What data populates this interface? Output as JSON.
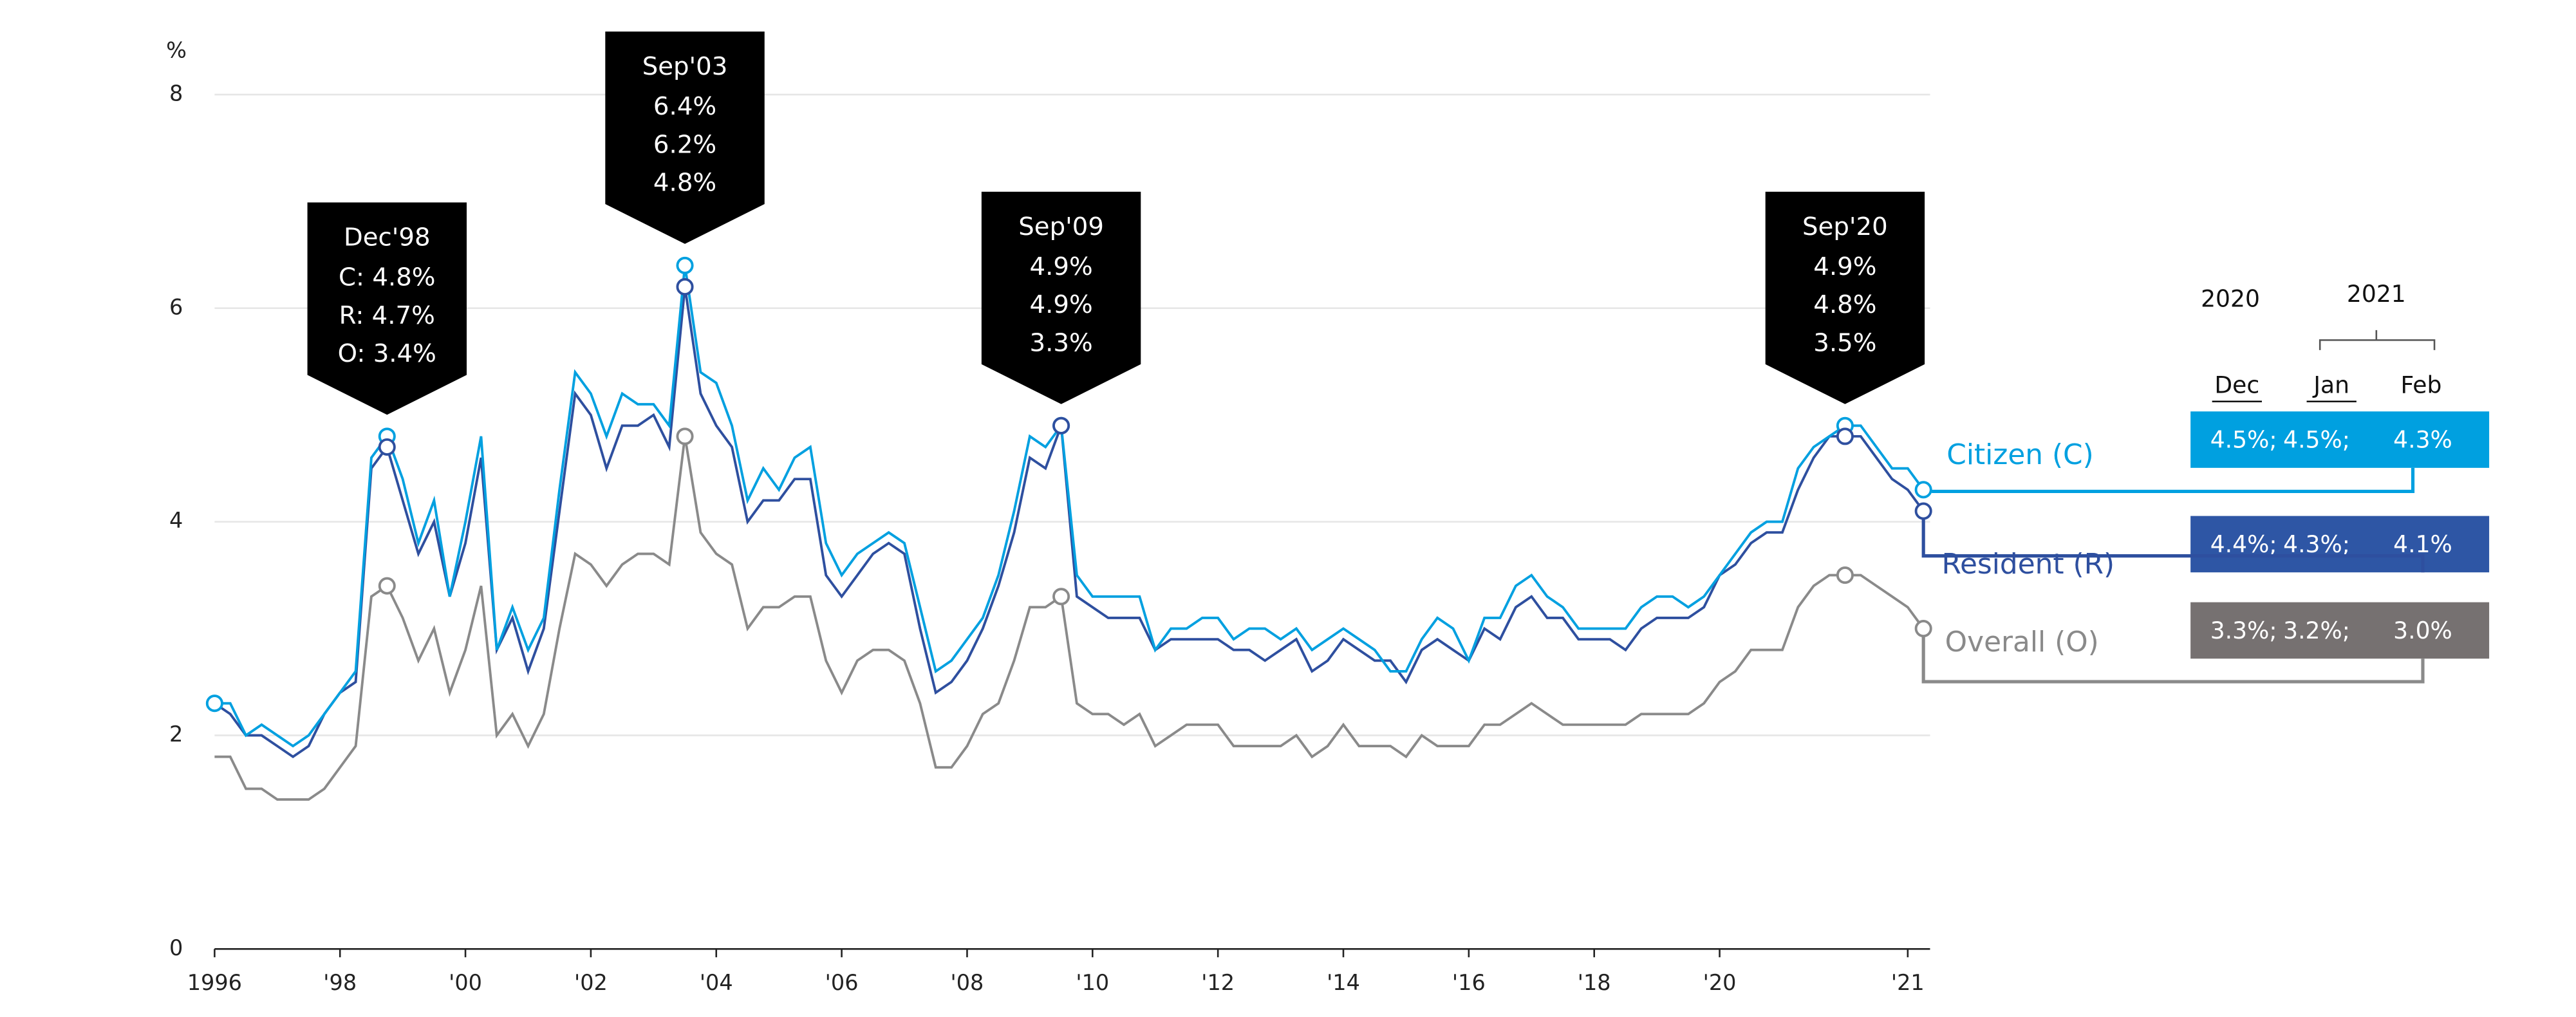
{
  "chart_data": {
    "type": "line",
    "y_unit": "%",
    "categories": [
      "1996",
      null,
      null,
      null,
      null,
      null,
      null,
      null,
      "'98",
      null,
      null,
      null,
      null,
      null,
      null,
      null,
      "'00",
      null,
      null,
      null,
      null,
      null,
      null,
      null,
      "'02",
      null,
      null,
      null,
      null,
      null,
      null,
      null,
      "'04",
      null,
      null,
      null,
      null,
      null,
      null,
      null,
      "'06",
      null,
      null,
      null,
      null,
      null,
      null,
      null,
      "'08",
      null,
      null,
      null,
      null,
      null,
      null,
      null,
      "'10",
      null,
      null,
      null,
      null,
      null,
      null,
      null,
      "'12",
      null,
      null,
      null,
      null,
      null,
      null,
      null,
      "'14",
      null,
      null,
      null,
      null,
      null,
      null,
      null,
      "'16",
      null,
      null,
      null,
      null,
      null,
      null,
      null,
      "'18",
      null,
      null,
      null,
      null,
      null,
      null,
      null,
      "'20",
      null,
      null,
      null,
      null,
      null,
      null,
      null,
      null,
      null,
      null,
      null,
      "'21",
      null
    ],
    "ylim": [
      0,
      8
    ],
    "yticks": [
      0,
      2,
      4,
      6,
      8
    ],
    "grid": true,
    "series": [
      {
        "name": "Citizen (C)",
        "color": "#00a0e0",
        "values": [
          2.3,
          2.3,
          2.0,
          2.1,
          2.0,
          1.9,
          2.0,
          2.2,
          2.4,
          2.6,
          4.6,
          4.8,
          4.4,
          3.8,
          4.2,
          3.3,
          4.0,
          4.8,
          2.8,
          3.2,
          2.8,
          3.1,
          4.3,
          5.4,
          5.2,
          4.8,
          5.2,
          5.1,
          5.1,
          4.9,
          6.4,
          5.4,
          5.3,
          4.9,
          4.2,
          4.5,
          4.3,
          4.6,
          4.7,
          3.8,
          3.5,
          3.7,
          3.8,
          3.9,
          3.8,
          3.2,
          2.6,
          2.7,
          2.9,
          3.1,
          3.5,
          4.1,
          4.8,
          4.7,
          4.9,
          3.5,
          3.3,
          3.3,
          3.3,
          3.3,
          2.8,
          3.0,
          3.0,
          3.1,
          3.1,
          2.9,
          3.0,
          3.0,
          2.9,
          3.0,
          2.8,
          2.9,
          3.0,
          2.9,
          2.8,
          2.6,
          2.6,
          2.9,
          3.1,
          3.0,
          2.7,
          3.1,
          3.1,
          3.4,
          3.5,
          3.3,
          3.2,
          3.0,
          3.0,
          3.0,
          3.0,
          3.2,
          3.3,
          3.3,
          3.2,
          3.3,
          3.5,
          3.7,
          3.9,
          4.0,
          4.0,
          4.5,
          4.7,
          4.8,
          4.9,
          4.9,
          4.7,
          4.5,
          4.5,
          4.3
        ]
      },
      {
        "name": "Resident (R)",
        "color": "#2e4f9f",
        "values": [
          2.3,
          2.2,
          2.0,
          2.0,
          1.9,
          1.8,
          1.9,
          2.2,
          2.4,
          2.5,
          4.5,
          4.7,
          4.2,
          3.7,
          4.0,
          3.3,
          3.8,
          4.6,
          2.8,
          3.1,
          2.6,
          3.0,
          4.1,
          5.2,
          5.0,
          4.5,
          4.9,
          4.9,
          5.0,
          4.7,
          6.2,
          5.2,
          4.9,
          4.7,
          4.0,
          4.2,
          4.2,
          4.4,
          4.4,
          3.5,
          3.3,
          3.5,
          3.7,
          3.8,
          3.7,
          3.0,
          2.4,
          2.5,
          2.7,
          3.0,
          3.4,
          3.9,
          4.6,
          4.5,
          4.9,
          3.3,
          3.2,
          3.1,
          3.1,
          3.1,
          2.8,
          2.9,
          2.9,
          2.9,
          2.9,
          2.8,
          2.8,
          2.7,
          2.8,
          2.9,
          2.6,
          2.7,
          2.9,
          2.8,
          2.7,
          2.7,
          2.5,
          2.8,
          2.9,
          2.8,
          2.7,
          3.0,
          2.9,
          3.2,
          3.3,
          3.1,
          3.1,
          2.9,
          2.9,
          2.9,
          2.8,
          3.0,
          3.1,
          3.1,
          3.1,
          3.2,
          3.5,
          3.6,
          3.8,
          3.9,
          3.9,
          4.3,
          4.6,
          4.8,
          4.8,
          4.8,
          4.6,
          4.4,
          4.3,
          4.1
        ]
      },
      {
        "name": "Overall (O)",
        "color": "#8a8a8a",
        "values": [
          1.8,
          1.8,
          1.5,
          1.5,
          1.4,
          1.4,
          1.4,
          1.5,
          1.7,
          1.9,
          3.3,
          3.4,
          3.1,
          2.7,
          3.0,
          2.4,
          2.8,
          3.4,
          2.0,
          2.2,
          1.9,
          2.2,
          3.0,
          3.7,
          3.6,
          3.4,
          3.6,
          3.7,
          3.7,
          3.6,
          4.8,
          3.9,
          3.7,
          3.6,
          3.0,
          3.2,
          3.2,
          3.3,
          3.3,
          2.7,
          2.4,
          2.7,
          2.8,
          2.8,
          2.7,
          2.3,
          1.7,
          1.7,
          1.9,
          2.2,
          2.3,
          2.7,
          3.2,
          3.2,
          3.3,
          2.3,
          2.2,
          2.2,
          2.1,
          2.2,
          1.9,
          2.0,
          2.1,
          2.1,
          2.1,
          1.9,
          1.9,
          1.9,
          1.9,
          2.0,
          1.8,
          1.9,
          2.1,
          1.9,
          1.9,
          1.9,
          1.8,
          2.0,
          1.9,
          1.9,
          1.9,
          2.1,
          2.1,
          2.2,
          2.3,
          2.2,
          2.1,
          2.1,
          2.1,
          2.1,
          2.1,
          2.2,
          2.2,
          2.2,
          2.2,
          2.3,
          2.5,
          2.6,
          2.8,
          2.8,
          2.8,
          3.2,
          3.4,
          3.5,
          3.5,
          3.5,
          3.4,
          3.3,
          3.2,
          3.0
        ]
      }
    ],
    "annotations": [
      {
        "title": "Dec'98",
        "lines": [
          "C: 4.8%",
          "R: 4.7%",
          "O: 3.4%"
        ],
        "index": 11
      },
      {
        "title": "Sep'03",
        "lines": [
          "6.4%",
          "6.2%",
          "4.8%"
        ],
        "index": 30
      },
      {
        "title": "Sep'09",
        "lines": [
          "4.9%",
          "4.9%",
          "3.3%"
        ],
        "index": 54
      },
      {
        "title": "Sep'20",
        "lines": [
          "4.9%",
          "4.8%",
          "3.5%"
        ],
        "index": 104
      }
    ],
    "table": {
      "years": [
        "2020",
        "2021"
      ],
      "months": [
        "Dec",
        "Jan",
        "Feb"
      ],
      "box_colors": [
        "#00a0e0",
        "#2e56a5",
        "#767171"
      ],
      "rows": [
        [
          "4.5%;",
          "4.5%;",
          "4.3%"
        ],
        [
          "4.4%;",
          "4.3%;",
          "4.1%"
        ],
        [
          "3.3%;",
          "3.2%;",
          "3.0%"
        ]
      ]
    }
  }
}
